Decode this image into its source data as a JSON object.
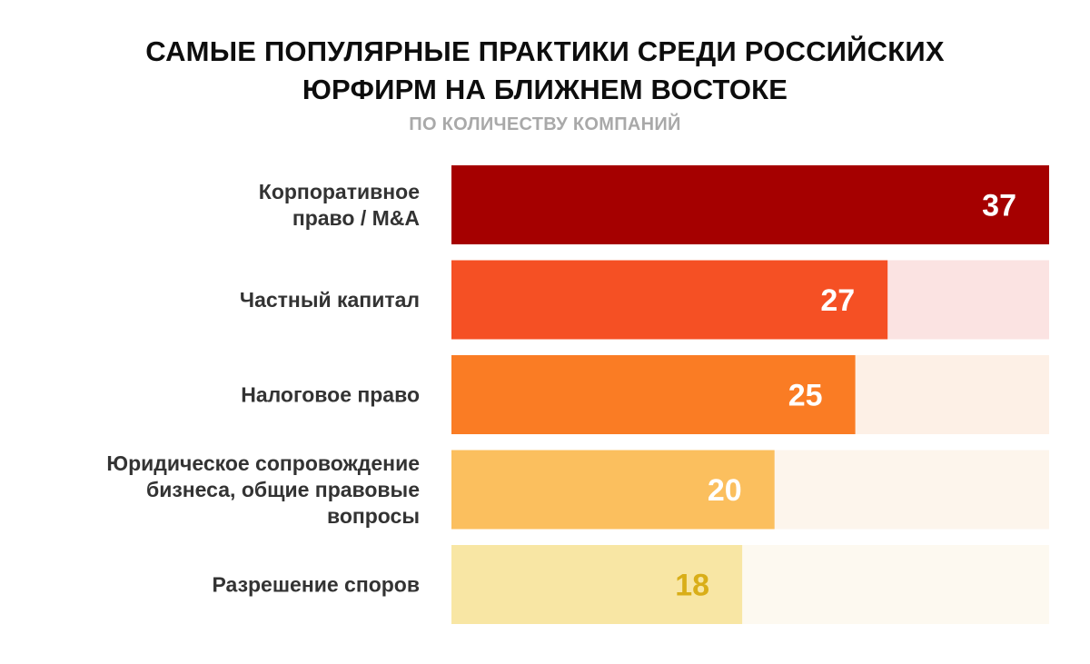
{
  "title_lines": [
    "САМЫЕ ПОПУЛЯРНЫЕ ПРАКТИКИ СРЕДИ РОССИЙСКИХ",
    "ЮРФИРМ НА БЛИЖНЕМ ВОСТОКЕ"
  ],
  "subtitle": "ПО КОЛИЧЕСТВУ КОМПАНИЙ",
  "chart_data": {
    "type": "bar",
    "orientation": "horizontal",
    "title": "САМЫЕ ПОПУЛЯРНЫЕ ПРАКТИКИ СРЕДИ РОССИЙСКИХ ЮРФИРМ НА БЛИЖНЕМ ВОСТОКЕ",
    "subtitle": "ПО КОЛИЧЕСТВУ КОМПАНИЙ",
    "xlim": [
      0,
      37
    ],
    "grid": false,
    "legend": "none",
    "categories": [
      [
        "Корпоративное",
        "право / M&A"
      ],
      [
        "Частный капитал"
      ],
      [
        "Налоговое право"
      ],
      [
        "Юридическое сопровождение",
        "бизнеса, общие правовые",
        "вопросы"
      ],
      [
        "Разрешение споров"
      ]
    ],
    "values": [
      37,
      27,
      25,
      20,
      18
    ],
    "value_labels": [
      "37",
      "27",
      "25",
      "20",
      "18"
    ],
    "bar_colors": [
      "#a50000",
      "#f55024",
      "#fa7c24",
      "#fbbf5e",
      "#f8e6a4"
    ],
    "track_colors": [
      "#fbe3e2",
      "#fbe3e2",
      "#fdf0e6",
      "#fdf5ec",
      "#fdf9f0"
    ],
    "value_label_colors": [
      "#ffffff",
      "#ffffff",
      "#ffffff",
      "#ffffff",
      "#d9ae18"
    ]
  }
}
